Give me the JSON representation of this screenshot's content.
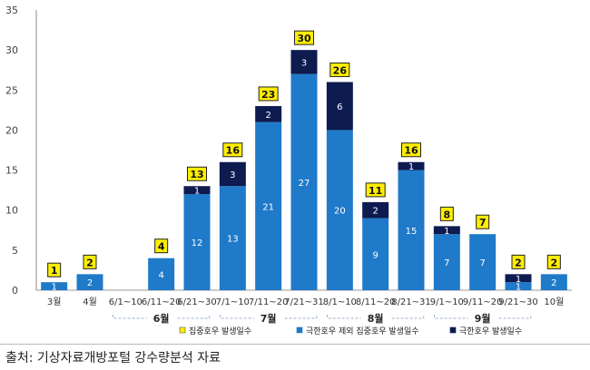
{
  "chart_data": {
    "type": "bar",
    "stacked": true,
    "categories": [
      "3월",
      "4월",
      "6/1~10",
      "6/11~20",
      "6/21~30",
      "7/1~10",
      "7/11~20",
      "7/21~31",
      "8/1~10",
      "8/11~20",
      "8/21~31",
      "9/1~10",
      "9/11~20",
      "9/21~30",
      "10월"
    ],
    "groups": [
      {
        "label": "6월",
        "from": 2,
        "to": 4
      },
      {
        "label": "7월",
        "from": 5,
        "to": 7
      },
      {
        "label": "8월",
        "from": 8,
        "to": 10
      },
      {
        "label": "9월",
        "from": 11,
        "to": 13
      }
    ],
    "series": [
      {
        "name": "극한호우 제외 집중호우 발생일수",
        "color": "#1f7ac9",
        "values": [
          1,
          2,
          0,
          4,
          12,
          13,
          21,
          27,
          20,
          9,
          15,
          7,
          7,
          1,
          2
        ]
      },
      {
        "name": "극한호우 발생일수",
        "color": "#0d1b4f",
        "values": [
          0,
          0,
          0,
          0,
          1,
          3,
          2,
          3,
          6,
          2,
          1,
          1,
          0,
          1,
          0
        ]
      }
    ],
    "totals_series": {
      "name": "집중호우 발생일수",
      "color": "#ffee00",
      "values": [
        1,
        2,
        0,
        4,
        13,
        16,
        23,
        30,
        26,
        11,
        16,
        8,
        7,
        2,
        2
      ]
    },
    "ylim": [
      0,
      35
    ],
    "yticks": [
      0,
      5,
      10,
      15,
      20,
      25,
      30,
      35
    ],
    "legend_position": "bottom"
  },
  "source": "출처: 기상자료개방포털 강수량분석 자료"
}
